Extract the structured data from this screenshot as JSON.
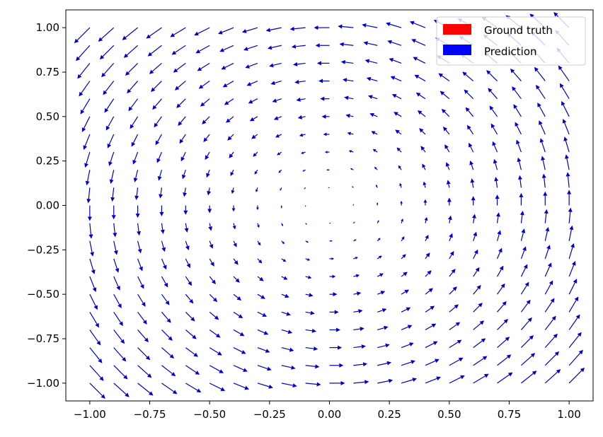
{
  "chart_data": {
    "type": "quiver",
    "title": "",
    "xlabel": "",
    "ylabel": "",
    "xlim": [
      -1.1,
      1.1
    ],
    "ylim": [
      -1.1,
      1.1
    ],
    "xticks": [
      "−1.00",
      "−0.75",
      "−0.50",
      "−0.25",
      "0.00",
      "0.25",
      "0.50",
      "0.75",
      "1.00"
    ],
    "yticks": [
      "1.00",
      "0.75",
      "0.50",
      "0.25",
      "0.00",
      "−0.25",
      "−0.50",
      "−0.75",
      "−1.00"
    ],
    "grid": false,
    "legend_position": "top-right",
    "field": "rotational (counter-clockwise) vector field, magnitude increasing with distance from origin",
    "grid_points": {
      "start": -1.0,
      "stop": 1.0,
      "count": 21
    },
    "series": [
      {
        "name": "Ground truth",
        "color": "#ff0000"
      },
      {
        "name": "Prediction",
        "color": "#0000ff"
      }
    ],
    "arrow_color": "#0000cc"
  }
}
